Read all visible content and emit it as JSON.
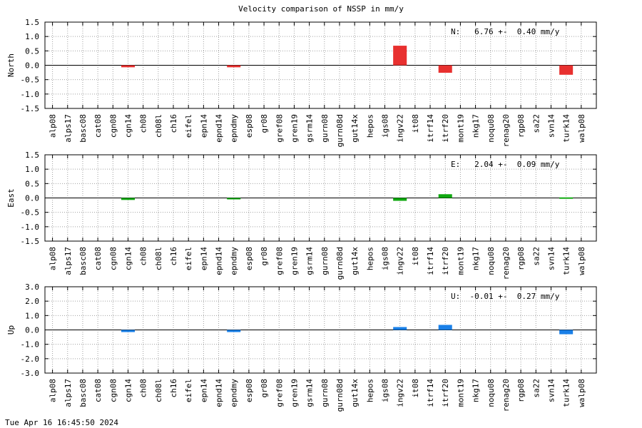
{
  "title": "Velocity comparison of NSSP in mm/y",
  "timestamp": "Tue Apr 16 16:45:50 2024",
  "chart_data": [
    {
      "type": "bar",
      "ylabel": "North",
      "ylim": [
        -1.5,
        1.5
      ],
      "yticks": [
        "1.5",
        "1.0",
        "0.5",
        "0.0",
        "-0.5",
        "-1.0",
        "-1.5"
      ],
      "ytick_values": [
        1.5,
        1.0,
        0.5,
        0.0,
        -0.5,
        -1.0,
        -1.5
      ],
      "grid": true,
      "annotation": "N:   6.76 +-  0.40 mm/y",
      "color": "#e8302f",
      "categories": [
        "alp08",
        "alps17",
        "basc08",
        "cat08",
        "cgn08",
        "cgn14",
        "ch08",
        "ch08l",
        "ch16",
        "eifel",
        "epn14",
        "epnd14",
        "epndmy",
        "esp08",
        "gr08",
        "gref08",
        "gren19",
        "gsrm14",
        "gurn08",
        "gurn08d",
        "gut14x",
        "hepos",
        "igs08",
        "ingv22",
        "it08",
        "itrf14",
        "itrf20",
        "mont19",
        "nkg17",
        "noqu08",
        "renag20",
        "rgp08",
        "sa22",
        "svn14",
        "turk14",
        "walp08"
      ],
      "values": [
        0,
        0,
        0,
        0,
        0,
        -0.07,
        0,
        0,
        0,
        0,
        0,
        0,
        -0.07,
        0,
        0,
        0,
        0,
        0,
        0,
        0,
        0,
        0,
        0,
        0.68,
        0,
        0,
        -0.26,
        0,
        0,
        0,
        0,
        0,
        0,
        0,
        -0.33,
        0
      ]
    },
    {
      "type": "bar",
      "ylabel": "East",
      "ylim": [
        -1.5,
        1.5
      ],
      "yticks": [
        "1.5",
        "1.0",
        "0.5",
        "0.0",
        "-0.5",
        "-1.0",
        "-1.5"
      ],
      "ytick_values": [
        1.5,
        1.0,
        0.5,
        0.0,
        -0.5,
        -1.0,
        -1.5
      ],
      "grid": true,
      "annotation": "E:   2.04 +-  0.09 mm/y",
      "color": "#10a810",
      "categories": [
        "alp08",
        "alps17",
        "basc08",
        "cat08",
        "cgn08",
        "cgn14",
        "ch08",
        "ch08l",
        "ch16",
        "eifel",
        "epn14",
        "epnd14",
        "epndmy",
        "esp08",
        "gr08",
        "gref08",
        "gren19",
        "gsrm14",
        "gurn08",
        "gurn08d",
        "gut14x",
        "hepos",
        "igs08",
        "ingv22",
        "it08",
        "itrf14",
        "itrf20",
        "mont19",
        "nkg17",
        "noqu08",
        "renag20",
        "rgp08",
        "sa22",
        "svn14",
        "turk14",
        "walp08"
      ],
      "values": [
        0,
        0,
        0,
        0,
        0,
        -0.07,
        0,
        0,
        0,
        0,
        0,
        0,
        -0.05,
        0,
        0,
        0,
        0,
        0,
        0,
        0,
        0,
        0,
        0,
        -0.1,
        0,
        0,
        0.13,
        0,
        0,
        0,
        0,
        0,
        0,
        0,
        0.02,
        0
      ]
    },
    {
      "type": "bar",
      "ylabel": "Up",
      "ylim": [
        -3.0,
        3.0
      ],
      "yticks": [
        "3.0",
        "2.0",
        "1.0",
        "0.0",
        "-1.0",
        "-2.0",
        "-3.0"
      ],
      "ytick_values": [
        3.0,
        2.0,
        1.0,
        0.0,
        -1.0,
        -2.0,
        -3.0
      ],
      "grid": true,
      "annotation": "U:  -0.01 +-  0.27 mm/y",
      "color": "#1a80e8",
      "categories": [
        "alp08",
        "alps17",
        "basc08",
        "cat08",
        "cgn08",
        "cgn14",
        "ch08",
        "ch08l",
        "ch16",
        "eifel",
        "epn14",
        "epnd14",
        "epndmy",
        "esp08",
        "gr08",
        "gref08",
        "gren19",
        "gsrm14",
        "gurn08",
        "gurn08d",
        "gut14x",
        "hepos",
        "igs08",
        "ingv22",
        "it08",
        "itrf14",
        "itrf20",
        "mont19",
        "nkg17",
        "noqu08",
        "renag20",
        "rgp08",
        "sa22",
        "svn14",
        "turk14",
        "walp08"
      ],
      "values": [
        0,
        0,
        0,
        0,
        0,
        -0.15,
        0,
        0,
        0,
        0,
        0,
        0,
        -0.15,
        0,
        0,
        0,
        0,
        0,
        0,
        0,
        0,
        0,
        0,
        0.2,
        0,
        0,
        0.35,
        0,
        0,
        0,
        0,
        0,
        0,
        0,
        -0.3,
        0
      ]
    }
  ]
}
